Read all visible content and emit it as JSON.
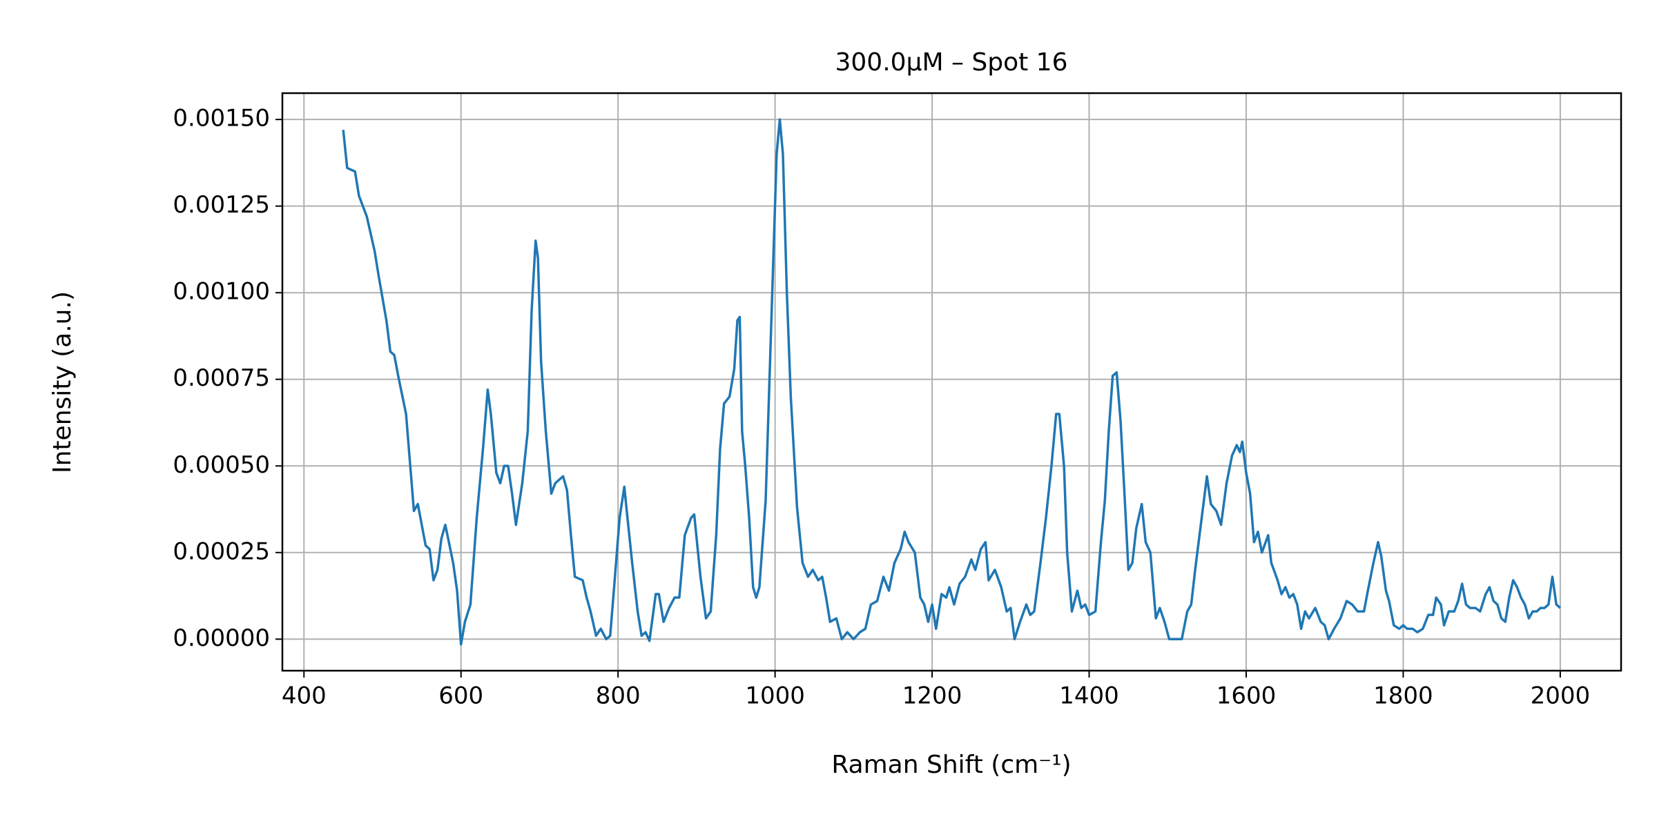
{
  "chart_data": {
    "type": "line",
    "title": "300.0μM – Spot 16",
    "xlabel": "Raman Shift (cm⁻¹)",
    "ylabel": "Intensity (a.u.)",
    "x": [
      450,
      455,
      465,
      470,
      480,
      490,
      495,
      505,
      510,
      515,
      520,
      530,
      540,
      545,
      555,
      560,
      565,
      570,
      575,
      580,
      590,
      595,
      600,
      605,
      612,
      620,
      628,
      634,
      638,
      645,
      650,
      655,
      660,
      665,
      670,
      678,
      685,
      690,
      695,
      698,
      702,
      708,
      715,
      720,
      725,
      730,
      735,
      740,
      745,
      755,
      760,
      765,
      772,
      778,
      785,
      790,
      795,
      802,
      808,
      812,
      818,
      825,
      830,
      835,
      840,
      848,
      852,
      858,
      865,
      872,
      878,
      885,
      893,
      897,
      905,
      912,
      918,
      925,
      930,
      935,
      942,
      948,
      952,
      955,
      958,
      962,
      967,
      972,
      976,
      980,
      988,
      995,
      1002,
      1006,
      1010,
      1015,
      1020,
      1028,
      1035,
      1042,
      1048,
      1055,
      1060,
      1065,
      1070,
      1078,
      1085,
      1092,
      1100,
      1108,
      1115,
      1122,
      1130,
      1138,
      1145,
      1152,
      1160,
      1165,
      1170,
      1178,
      1185,
      1190,
      1195,
      1200,
      1205,
      1212,
      1218,
      1222,
      1228,
      1235,
      1242,
      1250,
      1255,
      1262,
      1268,
      1272,
      1280,
      1288,
      1295,
      1300,
      1305,
      1312,
      1320,
      1325,
      1330,
      1338,
      1345,
      1352,
      1358,
      1362,
      1368,
      1372,
      1378,
      1385,
      1390,
      1395,
      1400,
      1408,
      1415,
      1420,
      1425,
      1430,
      1435,
      1440,
      1445,
      1450,
      1455,
      1460,
      1467,
      1472,
      1478,
      1485,
      1490,
      1496,
      1502,
      1510,
      1518,
      1525,
      1530,
      1535,
      1545,
      1550,
      1555,
      1562,
      1568,
      1575,
      1582,
      1588,
      1592,
      1595,
      1600,
      1605,
      1610,
      1615,
      1620,
      1628,
      1632,
      1640,
      1645,
      1650,
      1655,
      1660,
      1665,
      1670,
      1675,
      1680,
      1688,
      1695,
      1700,
      1705,
      1712,
      1720,
      1728,
      1735,
      1742,
      1750,
      1755,
      1762,
      1768,
      1772,
      1778,
      1782,
      1788,
      1795,
      1800,
      1805,
      1812,
      1818,
      1825,
      1832,
      1838,
      1842,
      1848,
      1852,
      1858,
      1865,
      1870,
      1875,
      1880,
      1885,
      1892,
      1898,
      1905,
      1910,
      1915,
      1920,
      1925,
      1930,
      1935,
      1940,
      1945,
      1950,
      1955,
      1960,
      1965,
      1970,
      1975,
      1980,
      1985,
      1990,
      1995,
      2000
    ],
    "values": [
      0.00147,
      0.00136,
      0.00135,
      0.00128,
      0.00122,
      0.00112,
      0.00105,
      0.00092,
      0.00083,
      0.00082,
      0.00076,
      0.00065,
      0.00037,
      0.00039,
      0.00027,
      0.00026,
      0.00017,
      0.0002,
      0.00029,
      0.00033,
      0.00022,
      0.00014,
      -1.5e-05,
      5e-05,
      0.0001,
      0.00035,
      0.00055,
      0.00072,
      0.00065,
      0.00048,
      0.00045,
      0.0005,
      0.0005,
      0.00042,
      0.00033,
      0.00045,
      0.0006,
      0.00095,
      0.00115,
      0.0011,
      0.0008,
      0.0006,
      0.00042,
      0.00045,
      0.00046,
      0.00047,
      0.00043,
      0.0003,
      0.00018,
      0.00017,
      0.00012,
      8e-05,
      1e-05,
      3e-05,
      0,
      1e-05,
      0.00015,
      0.00035,
      0.00044,
      0.00035,
      0.00022,
      8e-05,
      1e-05,
      2e-05,
      -5e-06,
      0.00013,
      0.00013,
      5e-05,
      9e-05,
      0.00012,
      0.00012,
      0.0003,
      0.00035,
      0.00036,
      0.00018,
      6e-05,
      8e-05,
      0.0003,
      0.00055,
      0.00068,
      0.0007,
      0.00078,
      0.00092,
      0.00093,
      0.0006,
      0.0005,
      0.00035,
      0.00015,
      0.00012,
      0.00015,
      0.0004,
      0.0009,
      0.0014,
      0.0015,
      0.0014,
      0.001,
      0.0007,
      0.00038,
      0.00022,
      0.00018,
      0.0002,
      0.00017,
      0.00018,
      0.00012,
      5e-05,
      6e-05,
      0,
      2e-05,
      0,
      2e-05,
      3e-05,
      0.0001,
      0.00011,
      0.00018,
      0.00014,
      0.00022,
      0.00026,
      0.00031,
      0.00028,
      0.00025,
      0.00012,
      0.0001,
      5e-05,
      0.0001,
      3e-05,
      0.00013,
      0.00012,
      0.00015,
      0.0001,
      0.00016,
      0.00018,
      0.00023,
      0.0002,
      0.00026,
      0.00028,
      0.00017,
      0.0002,
      0.00015,
      8e-05,
      9e-05,
      0,
      5e-05,
      0.0001,
      7e-05,
      8e-05,
      0.00022,
      0.00035,
      0.0005,
      0.00065,
      0.00065,
      0.0005,
      0.00025,
      8e-05,
      0.00014,
      9e-05,
      0.0001,
      7e-05,
      8e-05,
      0.00028,
      0.0004,
      0.0006,
      0.00076,
      0.00077,
      0.00063,
      0.00042,
      0.0002,
      0.00022,
      0.00032,
      0.00039,
      0.00028,
      0.00025,
      6e-05,
      9e-05,
      5e-05,
      0,
      0,
      0,
      8e-05,
      0.0001,
      0.0002,
      0.00038,
      0.00047,
      0.00039,
      0.00037,
      0.00033,
      0.00045,
      0.00053,
      0.00056,
      0.00054,
      0.00057,
      0.00048,
      0.00042,
      0.00028,
      0.00031,
      0.00025,
      0.0003,
      0.00022,
      0.00017,
      0.00013,
      0.00015,
      0.00012,
      0.00013,
      0.0001,
      3e-05,
      8e-05,
      6e-05,
      9e-05,
      5e-05,
      4e-05,
      0,
      3e-05,
      6e-05,
      0.00011,
      0.0001,
      8e-05,
      8e-05,
      0.00014,
      0.00022,
      0.00028,
      0.00024,
      0.00014,
      0.00011,
      4e-05,
      3e-05,
      4e-05,
      3e-05,
      3e-05,
      2e-05,
      3e-05,
      7e-05,
      7e-05,
      0.00012,
      0.0001,
      4e-05,
      8e-05,
      8e-05,
      0.00011,
      0.00016,
      0.0001,
      9e-05,
      9e-05,
      8e-05,
      0.00013,
      0.00015,
      0.00011,
      0.0001,
      6e-05,
      5e-05,
      0.00012,
      0.00017,
      0.00015,
      0.00012,
      0.0001,
      6e-05,
      8e-05,
      8e-05,
      9e-05,
      9e-05,
      0.0001,
      0.00018,
      0.0001,
      9e-05
    ],
    "color": "#1f77b4",
    "xlim": [
      372.5,
      2077.5
    ],
    "ylim": [
      -9.1e-05,
      0.001576
    ],
    "xticks": [
      400,
      600,
      800,
      1000,
      1200,
      1400,
      1600,
      1800,
      2000
    ],
    "yticks": [
      {
        "value": 0,
        "label": "0.00000"
      },
      {
        "value": 0.00025,
        "label": "0.00025"
      },
      {
        "value": 0.0005,
        "label": "0.00050"
      },
      {
        "value": 0.00075,
        "label": "0.00075"
      },
      {
        "value": 0.001,
        "label": "0.00100"
      },
      {
        "value": 0.00125,
        "label": "0.00125"
      },
      {
        "value": 0.0015,
        "label": "0.00150"
      }
    ],
    "grid": true
  }
}
